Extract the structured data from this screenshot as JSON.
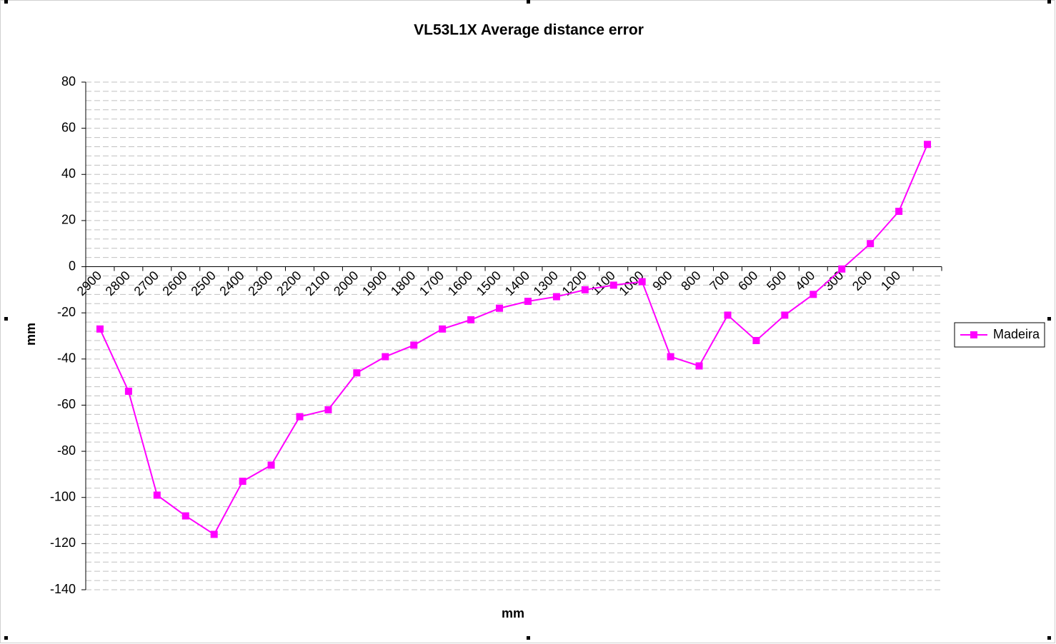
{
  "chart_data": {
    "type": "line",
    "title": "VL53L1X Average distance error",
    "x_label": "mm",
    "y_label": "mm",
    "categories": [
      "2900",
      "2800",
      "2700",
      "2600",
      "2500",
      "2400",
      "2300",
      "2200",
      "2100",
      "2000",
      "1900",
      "1800",
      "1700",
      "1600",
      "1500",
      "1400",
      "1300",
      "1200",
      "1100",
      "1000",
      "900",
      "800",
      "700",
      "600",
      "500",
      "400",
      "300",
      "200",
      "100",
      null
    ],
    "series": [
      {
        "name": "Madeira",
        "color": "#ff00ff",
        "values": [
          -27,
          -54,
          -99,
          -108,
          -116,
          -93,
          -86,
          -65,
          -62,
          -46,
          -39,
          -34,
          -27,
          -23,
          -18,
          -15,
          -13,
          -10,
          -8,
          -6.5,
          -39,
          -43,
          -21,
          -32,
          -21,
          -12,
          -1,
          10,
          24,
          53
        ]
      }
    ],
    "ylim": [
      -140,
      80
    ],
    "yticks": [
      -140,
      -120,
      -100,
      -80,
      -60,
      -40,
      -20,
      0,
      20,
      40,
      60,
      80
    ],
    "grid": true,
    "legend": "right"
  }
}
